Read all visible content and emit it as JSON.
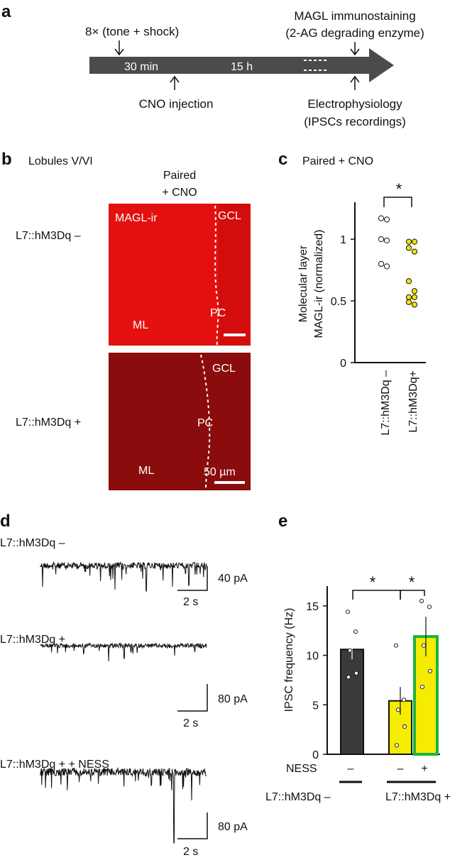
{
  "panel_a": {
    "label": "a",
    "top_left": "8× (tone + shock)",
    "top_right_1": "MAGL immunostaining",
    "top_right_2": "(2-AG degrading enzyme)",
    "arrow_label_1": "30 min",
    "arrow_label_2": "15 h",
    "bottom_left": "CNO injection",
    "bottom_right_1": "Electrophysiology",
    "bottom_right_2": "(IPSCs recordings)"
  },
  "panel_b": {
    "label": "b",
    "title": "Lobules V/VI",
    "column_1": "Paired",
    "column_2": "+ CNO",
    "row_1": "L7::hM3Dq –",
    "row_2": "L7::hM3Dq +",
    "img1_labels": {
      "magl": "MAGL-ir",
      "gcl": "GCL",
      "pc": "PC",
      "ml": "ML"
    },
    "img2_labels": {
      "gcl": "GCL",
      "pc": "PC",
      "ml": "ML",
      "scale": "50 µm"
    },
    "img1_color": "#e41010",
    "img2_color": "#8a0c0c"
  },
  "panel_c": {
    "label": "c",
    "title": "Paired + CNO",
    "ylabel_1": "Molecular layer",
    "ylabel_2": "MAGL-ir (normalized)",
    "star": "*",
    "categories": [
      "L7::hM3Dq –",
      "L7::hM3Dq+"
    ],
    "y_ticks": [
      "0",
      "0.5",
      "1"
    ]
  },
  "panel_d": {
    "label": "d",
    "trace1_label": "L7::hM3Dq –",
    "trace1_scale_y": "40 pA",
    "trace1_scale_x": "2 s",
    "trace2_label": "L7::hM3Dq +",
    "trace2_scale_y": "80 pA",
    "trace2_scale_x": "2 s",
    "trace3_label": "L7::hM3Dq + + NESS",
    "trace3_scale_y": "80 pA",
    "trace3_scale_x": "2 s"
  },
  "panel_e": {
    "label": "e",
    "ylabel": "IPSC frequency (Hz)",
    "y_ticks": [
      "0",
      "5",
      "10",
      "15"
    ],
    "ness_label": "NESS",
    "ness_values": [
      "–",
      "–",
      "+"
    ],
    "group_1": "L7::hM3Dq –",
    "group_2": "L7::hM3Dq +",
    "star_1": "*",
    "star_2": "*"
  },
  "chart_data": [
    {
      "type": "scatter",
      "categories": [
        "L7::hM3Dq –",
        "L7::hM3Dq+"
      ],
      "series": [
        {
          "values": [
            1.17,
            1.16,
            1.0,
            0.99,
            0.8,
            0.78
          ],
          "category": "L7::hM3Dq –",
          "color": "#ffffff"
        },
        {
          "values": [
            0.98,
            0.98,
            0.93,
            0.9,
            0.66,
            0.58,
            0.53,
            0.53,
            0.49,
            0.47
          ],
          "category": "L7::hM3Dq+",
          "color": "#f2e600"
        }
      ],
      "title": "Paired + CNO",
      "ylabel": "Molecular layer MAGL-ir (normalized)",
      "ylim": [
        0,
        1.3
      ]
    },
    {
      "type": "bar",
      "categories": [
        "–",
        "–",
        "+"
      ],
      "values": [
        10.6,
        5.4,
        11.9
      ],
      "errors": [
        1.0,
        1.4,
        2.0
      ],
      "points": [
        [
          14.4,
          12.4,
          10.5,
          8.2,
          7.8
        ],
        [
          11.0,
          5.5,
          4.5,
          2.8,
          0.9
        ],
        [
          15.5,
          14.9,
          11.0,
          8.4,
          6.8
        ]
      ],
      "colors": [
        "#3a3a3a",
        "#f5ec00",
        "#f5ec00"
      ],
      "borders": [
        "#111111",
        "#111111",
        "#1db33c"
      ],
      "ylabel": "IPSC frequency (Hz)",
      "ylim": [
        0,
        17
      ]
    }
  ]
}
